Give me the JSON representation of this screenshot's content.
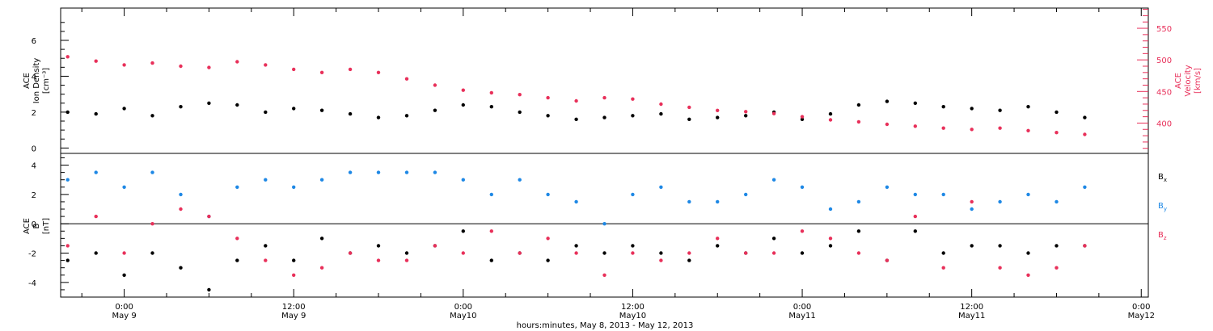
{
  "title": "",
  "xlabel": "hours:minutes, May 8, 2013 - May 12, 2013",
  "x_ticks": [
    {
      "time": "0:00",
      "day": "May 9",
      "hours": 24
    },
    {
      "time": "12:00",
      "day": "May 9",
      "hours": 36
    },
    {
      "time": "0:00",
      "day": "May10",
      "hours": 48
    },
    {
      "time": "12:00",
      "day": "May10",
      "hours": 60
    },
    {
      "time": "0:00",
      "day": "May11",
      "hours": 72
    },
    {
      "time": "12:00",
      "day": "May11",
      "hours": 84
    },
    {
      "time": "0:00",
      "day": "May12",
      "hours": 96
    }
  ],
  "colors": {
    "density": "#000000",
    "velocity": "#e8305a",
    "bx": "#000000",
    "by": "#1e88e5",
    "bz": "#e8305a"
  },
  "chart_data": [
    {
      "type": "scatter",
      "panel": "top",
      "ylabel_left": [
        "ACE",
        "Ion Density",
        "[cm⁻³]"
      ],
      "ylabel_right": [
        "ACE",
        "Velocity",
        "[km/s]"
      ],
      "x_unit": "hours since May 8, 2013 00:00",
      "xlim": [
        19.5,
        96.5
      ],
      "ylim_left": [
        -0.3,
        7.8
      ],
      "ylim_right": [
        352,
        582
      ],
      "yticks_left": [
        0,
        2,
        4,
        6
      ],
      "yticks_right": [
        400,
        450,
        500,
        550
      ],
      "series": [
        {
          "axis": "left",
          "color": "#000000",
          "x": [
            20,
            22,
            24,
            26,
            28,
            30,
            32,
            34,
            36,
            38,
            40,
            42,
            44,
            46,
            48,
            50,
            52,
            54,
            56,
            58,
            60,
            62,
            64,
            66,
            68,
            70,
            72,
            74,
            76,
            78,
            80,
            82,
            84,
            86,
            88,
            90,
            92
          ],
          "y": [
            2.0,
            1.9,
            2.2,
            1.8,
            2.3,
            2.5,
            2.4,
            2.0,
            2.2,
            2.1,
            1.9,
            1.7,
            1.8,
            2.1,
            2.4,
            2.3,
            2.0,
            1.8,
            1.6,
            1.7,
            1.8,
            1.9,
            1.6,
            1.7,
            1.8,
            2.0,
            1.6,
            1.9,
            2.4,
            2.6,
            2.5,
            2.3,
            2.2,
            2.1,
            2.3,
            2.0,
            1.7
          ]
        },
        {
          "axis": "right",
          "color": "#e8305a",
          "x": [
            20,
            22,
            24,
            26,
            28,
            30,
            32,
            34,
            36,
            38,
            40,
            42,
            44,
            46,
            48,
            50,
            52,
            54,
            56,
            58,
            60,
            62,
            64,
            66,
            68,
            70,
            72,
            74,
            76,
            78,
            80,
            82,
            84,
            86,
            88,
            90,
            92
          ],
          "y": [
            505,
            498,
            492,
            495,
            490,
            488,
            497,
            492,
            485,
            480,
            485,
            480,
            470,
            460,
            452,
            448,
            445,
            440,
            435,
            440,
            438,
            430,
            425,
            420,
            418,
            415,
            410,
            405,
            402,
            398,
            395,
            392,
            390,
            392,
            388,
            385,
            382
          ]
        }
      ]
    },
    {
      "type": "scatter",
      "panel": "bottom",
      "ylabel_left": [
        "ACE",
        "B",
        "[nT]"
      ],
      "x_unit": "hours since May 8, 2013 00:00",
      "xlim": [
        19.5,
        96.5
      ],
      "ylim": [
        -5,
        4.8
      ],
      "yticks": [
        -4,
        -2,
        0,
        2,
        4
      ],
      "zero_line": true,
      "legend": [
        "Bx",
        "By",
        "Bz"
      ],
      "legend_position": "right",
      "series": [
        {
          "name": "Bx",
          "color": "#000000",
          "x": [
            20,
            22,
            24,
            26,
            28,
            30,
            32,
            34,
            36,
            38,
            40,
            42,
            44,
            46,
            48,
            50,
            52,
            54,
            56,
            58,
            60,
            62,
            64,
            66,
            68,
            70,
            72,
            74,
            76,
            78,
            80,
            82,
            84,
            86,
            88,
            90,
            92
          ],
          "y": [
            -2.5,
            -2.0,
            -3.5,
            -2.0,
            -3.0,
            -4.5,
            -2.5,
            -1.5,
            -2.5,
            -1.0,
            -2.0,
            -1.5,
            -2.0,
            -1.5,
            -0.5,
            -2.5,
            -2.0,
            -2.5,
            -1.5,
            -2.0,
            -1.5,
            -2.0,
            -2.5,
            -1.5,
            -2.0,
            -1.0,
            -2.0,
            -1.5,
            -0.5,
            -2.5,
            -0.5,
            -2.0,
            -1.5,
            -1.5,
            -2.0,
            -1.5,
            -1.5
          ]
        },
        {
          "name": "By",
          "color": "#1e88e5",
          "x": [
            20,
            22,
            24,
            26,
            28,
            30,
            32,
            34,
            36,
            38,
            40,
            42,
            44,
            46,
            48,
            50,
            52,
            54,
            56,
            58,
            60,
            62,
            64,
            66,
            68,
            70,
            72,
            74,
            76,
            78,
            80,
            82,
            84,
            86,
            88,
            90,
            92
          ],
          "y": [
            3.0,
            3.5,
            2.5,
            3.5,
            2.0,
            0.5,
            2.5,
            3.0,
            2.5,
            3.0,
            3.5,
            3.5,
            3.5,
            3.5,
            3.0,
            2.0,
            3.0,
            2.0,
            1.5,
            0.0,
            2.0,
            2.5,
            1.5,
            1.5,
            2.0,
            3.0,
            2.5,
            1.0,
            1.5,
            2.5,
            2.0,
            2.0,
            1.0,
            1.5,
            2.0,
            1.5,
            2.5
          ]
        },
        {
          "name": "Bz",
          "color": "#e8305a",
          "x": [
            20,
            22,
            24,
            26,
            28,
            30,
            32,
            34,
            36,
            38,
            40,
            42,
            44,
            46,
            48,
            50,
            52,
            54,
            56,
            58,
            60,
            62,
            64,
            66,
            68,
            70,
            72,
            74,
            76,
            78,
            80,
            82,
            84,
            86,
            88,
            90,
            92
          ],
          "y": [
            -1.5,
            0.5,
            -2.0,
            0.0,
            1.0,
            0.5,
            -1.0,
            -2.5,
            -3.5,
            -3.0,
            -2.0,
            -2.5,
            -2.5,
            -1.5,
            -2.0,
            -0.5,
            -2.0,
            -1.0,
            -2.0,
            -3.5,
            -2.0,
            -2.5,
            -2.0,
            -1.0,
            -2.0,
            -2.0,
            -0.5,
            -1.0,
            -2.0,
            -2.5,
            0.5,
            -3.0,
            1.5,
            -3.0,
            -3.5,
            -3.0,
            -1.5
          ]
        }
      ]
    }
  ]
}
